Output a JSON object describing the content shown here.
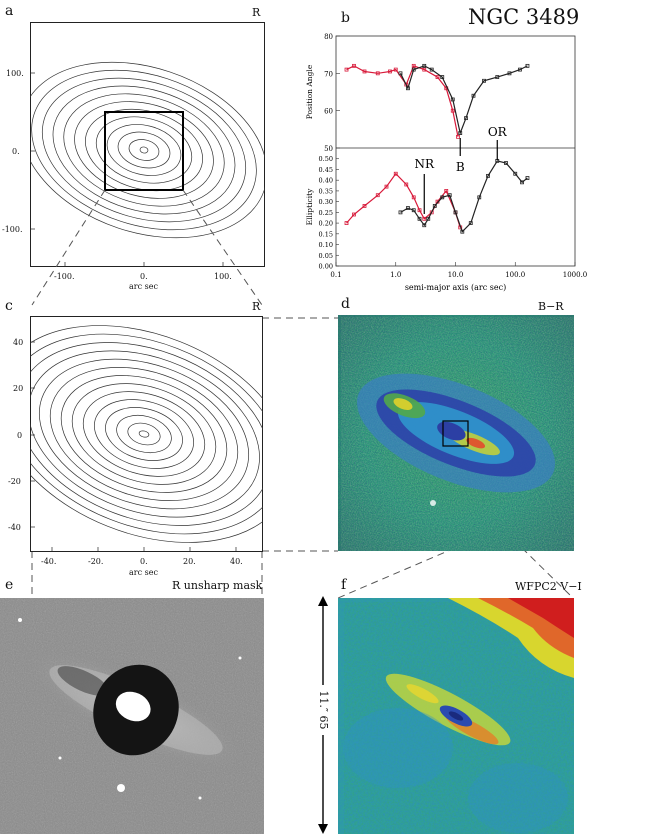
{
  "figure": {
    "title": "NGC 3489",
    "panel_a": {
      "letter": "a",
      "band": "R",
      "xlabel": "arc sec",
      "xticks": [
        "-100.",
        "0.",
        "100."
      ],
      "yticks": [
        "100.",
        "0.",
        "-100."
      ]
    },
    "panel_b": {
      "letter": "b",
      "pa_label": "Position Angle",
      "ell_label": "Ellipticity",
      "xlabel": "semi-major axis (arc sec)",
      "pa_ticks": [
        "80",
        "70",
        "60",
        "50"
      ],
      "ell_ticks": [
        "0.50",
        "0.45",
        "0.40",
        "0.35",
        "0.30",
        "0.25",
        "0.20",
        "0.15",
        "0.10",
        "0.05",
        "0.00"
      ],
      "xticks": [
        "0.1",
        "1.0",
        "10.0",
        "100.0",
        "1000.0"
      ],
      "annotations": {
        "nr": "NR",
        "b": "B",
        "or": "OR"
      }
    },
    "panel_c": {
      "letter": "c",
      "band": "R",
      "xlabel": "arc sec",
      "xticks": [
        "-40.",
        "-20.",
        "0.",
        "20.",
        "40."
      ],
      "yticks": [
        "40",
        "20",
        "0",
        "-20",
        "-40"
      ]
    },
    "panel_d": {
      "letter": "d",
      "band": "B−R"
    },
    "panel_e": {
      "letter": "e",
      "band": "R unsharp mask"
    },
    "panel_f": {
      "letter": "f",
      "band": "WFPC2 V−I",
      "scale": "11.″ 65"
    }
  },
  "chart_data": [
    {
      "type": "scatter",
      "title": "",
      "xlabel": "semi-major axis (arc sec)",
      "ylabel": "Position Angle",
      "xscale": "log",
      "xlim": [
        0.1,
        1000
      ],
      "ylim": [
        50,
        80
      ],
      "series": [
        {
          "color": "#d81a3a",
          "x": [
            0.15,
            0.2,
            0.3,
            0.5,
            0.8,
            1.0,
            1.5,
            2.0,
            3.0,
            5.0,
            7.0,
            9.0,
            11.0
          ],
          "y": [
            71,
            72,
            70.5,
            70,
            70.5,
            71,
            67,
            72,
            71,
            69,
            66,
            60,
            53
          ]
        },
        {
          "color": "#222222",
          "x": [
            1.2,
            1.6,
            2.0,
            3.0,
            4.0,
            6.0,
            9.0,
            12.0,
            15.0,
            20.0,
            30.0,
            50.0,
            80.0,
            120.0,
            160.0
          ],
          "y": [
            70,
            66,
            71,
            72,
            71,
            69,
            63,
            54,
            58,
            64,
            68,
            69,
            70,
            71,
            72
          ]
        }
      ]
    },
    {
      "type": "scatter",
      "title": "",
      "xlabel": "semi-major axis (arc sec)",
      "ylabel": "Ellipticity",
      "xscale": "log",
      "xlim": [
        0.1,
        1000
      ],
      "ylim": [
        0.0,
        0.55
      ],
      "series": [
        {
          "color": "#d81a3a",
          "x": [
            0.15,
            0.2,
            0.3,
            0.5,
            0.7,
            1.0,
            1.5,
            2.0,
            2.5,
            3.0,
            4.0,
            5.0,
            7.0,
            10.0,
            12.0
          ],
          "y": [
            0.2,
            0.24,
            0.28,
            0.33,
            0.37,
            0.43,
            0.38,
            0.32,
            0.26,
            0.22,
            0.25,
            0.3,
            0.35,
            0.25,
            0.18
          ]
        },
        {
          "color": "#222222",
          "x": [
            1.2,
            1.6,
            2.0,
            2.5,
            3.0,
            3.5,
            4.5,
            6.0,
            8.0,
            10.0,
            13.0,
            18.0,
            25.0,
            35.0,
            50.0,
            70.0,
            100.0,
            130.0,
            160.0
          ],
          "y": [
            0.25,
            0.27,
            0.26,
            0.22,
            0.19,
            0.22,
            0.28,
            0.32,
            0.33,
            0.25,
            0.16,
            0.2,
            0.32,
            0.42,
            0.49,
            0.48,
            0.43,
            0.39,
            0.41
          ]
        }
      ]
    }
  ]
}
